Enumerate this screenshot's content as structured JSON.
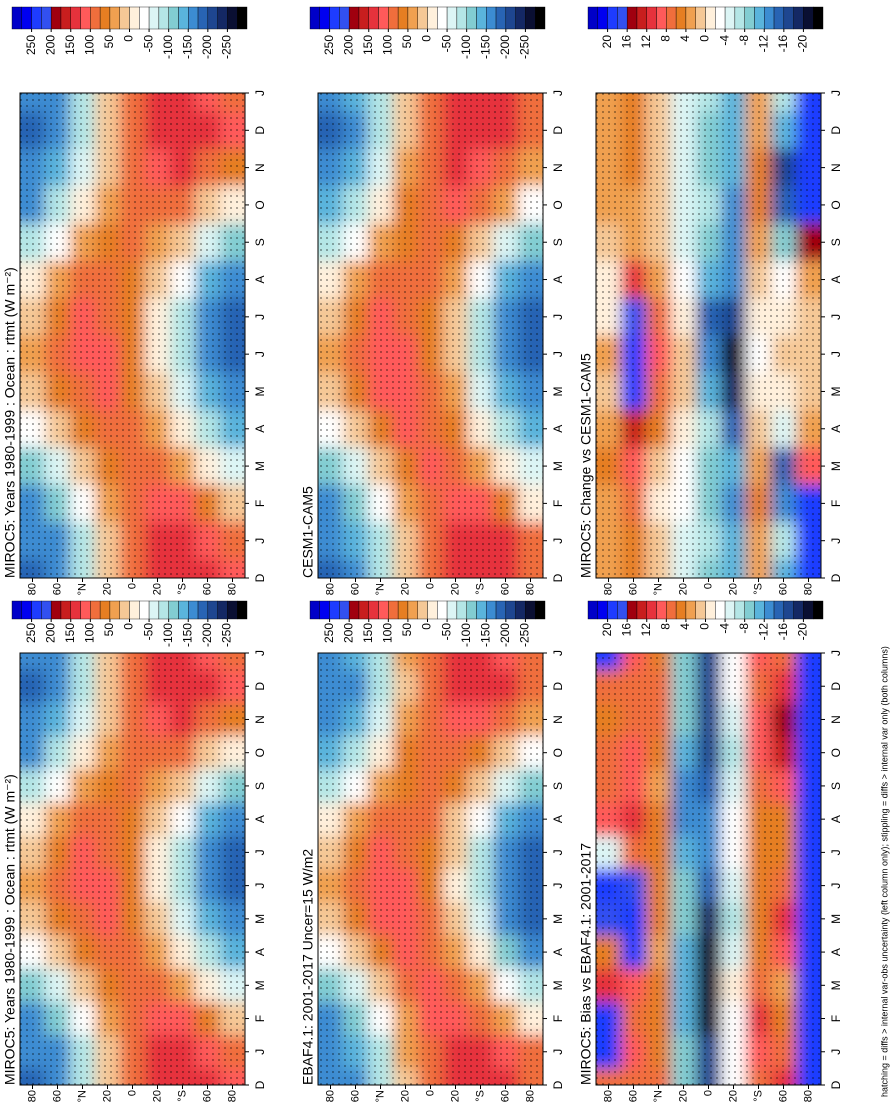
{
  "chart_data": [
    {
      "type": "heatmap",
      "title": "MIROC5: Years 1980-1999 : Ocean : rtmt (W m⁻²)",
      "x": [
        "D",
        "J",
        "F",
        "M",
        "A",
        "M",
        "J",
        "J",
        "A",
        "S",
        "O",
        "N",
        "D",
        "J"
      ],
      "y": [
        80,
        60,
        40,
        20,
        0,
        -20,
        -40,
        -60,
        -80
      ],
      "ylim": [
        90,
        -90
      ],
      "yticks": [
        80,
        60,
        {
          "value": 40,
          "label": "°N"
        },
        20,
        0,
        {
          "value": -20,
          "label": "20"
        },
        {
          "value": -40,
          "label": "°S"
        },
        {
          "value": -60,
          "label": "60"
        },
        {
          "value": -80,
          "label": "80"
        }
      ],
      "z": [
        [
          -170,
          -160,
          -110,
          -30,
          20,
          40,
          20,
          -20,
          -90,
          -150,
          -170,
          -175
        ],
        [
          -150,
          -120,
          -60,
          10,
          60,
          80,
          70,
          30,
          -30,
          -90,
          -140,
          -155
        ],
        [
          -80,
          -40,
          10,
          60,
          100,
          120,
          110,
          80,
          30,
          -20,
          -70,
          -90
        ],
        [
          20,
          40,
          70,
          100,
          110,
          110,
          100,
          90,
          70,
          50,
          25,
          10
        ],
        [
          80,
          90,
          100,
          90,
          70,
          60,
          60,
          70,
          80,
          80,
          80,
          80
        ],
        [
          130,
          110,
          80,
          40,
          10,
          -5,
          0,
          20,
          50,
          90,
          120,
          135
        ],
        [
          140,
          110,
          50,
          -10,
          -60,
          -90,
          -80,
          -40,
          20,
          80,
          130,
          150
        ],
        [
          120,
          60,
          -20,
          -90,
          -140,
          -160,
          -160,
          -130,
          -60,
          20,
          90,
          140
        ],
        [
          100,
          20,
          -60,
          -130,
          -170,
          -180,
          -180,
          -160,
          -100,
          -10,
          70,
          120
        ]
      ],
      "colorbar_ticks": [
        250,
        200,
        150,
        100,
        50,
        0,
        -50,
        -100,
        -150,
        -200,
        -250
      ]
    },
    {
      "type": "heatmap",
      "title": "MIROC5: Years 1980-1999 : Ocean : rtmt (W m⁻²)",
      "x": [
        "D",
        "J",
        "F",
        "M",
        "A",
        "M",
        "J",
        "J",
        "A",
        "S",
        "O",
        "N",
        "D",
        "J"
      ],
      "y": [
        80,
        60,
        40,
        20,
        0,
        -20,
        -40,
        -60,
        -80
      ],
      "ylim": [
        90,
        -90
      ],
      "yticks": [
        80,
        60,
        {
          "value": 40,
          "label": "°N"
        },
        20,
        0,
        {
          "value": -20,
          "label": "20"
        },
        {
          "value": -40,
          "label": "°S"
        },
        {
          "value": -60,
          "label": "60"
        },
        {
          "value": -80,
          "label": "80"
        }
      ],
      "z": [
        [
          -170,
          -160,
          -110,
          -30,
          20,
          40,
          20,
          -20,
          -90,
          -150,
          -170,
          -175
        ],
        [
          -150,
          -120,
          -60,
          10,
          60,
          80,
          70,
          30,
          -30,
          -90,
          -140,
          -155
        ],
        [
          -80,
          -40,
          10,
          60,
          100,
          120,
          110,
          80,
          30,
          -20,
          -70,
          -90
        ],
        [
          20,
          40,
          70,
          100,
          110,
          110,
          100,
          90,
          70,
          50,
          25,
          10
        ],
        [
          80,
          90,
          100,
          90,
          70,
          60,
          60,
          70,
          80,
          80,
          80,
          80
        ],
        [
          130,
          110,
          80,
          40,
          10,
          -5,
          0,
          20,
          50,
          90,
          120,
          135
        ],
        [
          140,
          110,
          50,
          -10,
          -60,
          -90,
          -80,
          -40,
          20,
          80,
          130,
          150
        ],
        [
          120,
          60,
          -20,
          -90,
          -140,
          -160,
          -160,
          -130,
          -60,
          20,
          90,
          140
        ],
        [
          100,
          20,
          -60,
          -130,
          -170,
          -180,
          -180,
          -160,
          -100,
          -10,
          70,
          120
        ]
      ],
      "colorbar_ticks": [
        250,
        200,
        150,
        100,
        50,
        0,
        -50,
        -100,
        -150,
        -200,
        -250
      ]
    },
    {
      "type": "heatmap",
      "title": "EBAF4.1: 2001-2017 Uncer=15 W/m2",
      "x": [
        "D",
        "J",
        "F",
        "M",
        "A",
        "M",
        "J",
        "J",
        "A",
        "S",
        "O",
        "N",
        "D",
        "J"
      ],
      "y": [
        80,
        60,
        40,
        20,
        0,
        -20,
        -40,
        -60,
        -80
      ],
      "ylim": [
        90,
        -90
      ],
      "yticks": [
        80,
        60,
        {
          "value": 40,
          "label": "°N"
        },
        20,
        0,
        {
          "value": -20,
          "label": "20"
        },
        {
          "value": -40,
          "label": "°S"
        },
        {
          "value": -60,
          "label": "60"
        },
        {
          "value": -80,
          "label": "80"
        }
      ],
      "z": [
        [
          -165,
          -150,
          -100,
          -25,
          25,
          45,
          25,
          -15,
          -85,
          -145,
          -165,
          -170
        ],
        [
          -140,
          -110,
          -55,
          15,
          65,
          85,
          75,
          35,
          -25,
          -85,
          -135,
          -150
        ],
        [
          -75,
          -35,
          15,
          65,
          105,
          125,
          115,
          85,
          35,
          -15,
          -65,
          -85
        ],
        [
          30,
          50,
          80,
          105,
          110,
          105,
          95,
          90,
          75,
          55,
          35,
          20
        ],
        [
          95,
          105,
          110,
          100,
          85,
          75,
          75,
          85,
          95,
          95,
          95,
          95
        ],
        [
          135,
          115,
          85,
          45,
          15,
          0,
          5,
          25,
          55,
          95,
          125,
          140
        ],
        [
          130,
          100,
          40,
          -20,
          -70,
          -95,
          -85,
          -45,
          15,
          75,
          120,
          140
        ],
        [
          110,
          50,
          -30,
          -100,
          -150,
          -165,
          -165,
          -135,
          -70,
          10,
          80,
          130
        ],
        [
          80,
          0,
          -80,
          -150,
          -180,
          -185,
          -185,
          -170,
          -120,
          -30,
          50,
          100
        ]
      ],
      "colorbar_ticks": [
        250,
        200,
        150,
        100,
        50,
        0,
        -50,
        -100,
        -150,
        -200,
        -250
      ]
    },
    {
      "type": "heatmap",
      "title": "CESM1-CAM5",
      "x": [
        "D",
        "J",
        "F",
        "M",
        "A",
        "M",
        "J",
        "J",
        "A",
        "S",
        "O",
        "N",
        "D",
        "J"
      ],
      "y": [
        80,
        60,
        40,
        20,
        0,
        -20,
        -40,
        -60,
        -80
      ],
      "ylim": [
        90,
        -90
      ],
      "yticks": [
        80,
        60,
        {
          "value": 40,
          "label": "°N"
        },
        20,
        0,
        {
          "value": -20,
          "label": "20"
        },
        {
          "value": -40,
          "label": "°S"
        },
        {
          "value": -60,
          "label": "60"
        },
        {
          "value": -80,
          "label": "80"
        }
      ],
      "z": [
        [
          -172,
          -160,
          -108,
          -28,
          22,
          42,
          22,
          -18,
          -88,
          -148,
          -168,
          -176
        ],
        [
          -148,
          -118,
          -58,
          12,
          62,
          84,
          74,
          32,
          -28,
          -88,
          -138,
          -152
        ],
        [
          -78,
          -38,
          12,
          62,
          102,
          122,
          112,
          82,
          32,
          -18,
          -68,
          -88
        ],
        [
          22,
          42,
          72,
          102,
          108,
          106,
          98,
          90,
          72,
          52,
          28,
          14
        ],
        [
          86,
          96,
          106,
          96,
          80,
          72,
          74,
          80,
          88,
          86,
          88,
          88
        ],
        [
          140,
          122,
          90,
          54,
          28,
          15,
          16,
          32,
          62,
          102,
          130,
          145
        ],
        [
          136,
          104,
          46,
          -12,
          -60,
          -88,
          -80,
          -42,
          16,
          76,
          124,
          146
        ],
        [
          126,
          72,
          -6,
          -86,
          -140,
          -162,
          -160,
          -128,
          -52,
          34,
          100,
          150
        ],
        [
          80,
          0,
          -70,
          -134,
          -172,
          -182,
          -182,
          -164,
          -116,
          -30,
          50,
          100
        ]
      ],
      "colorbar_ticks": [
        250,
        200,
        150,
        100,
        50,
        0,
        -50,
        -100,
        -150,
        -200,
        -250
      ]
    },
    {
      "type": "heatmap",
      "title": "MIROC5: Bias vs EBAF4.1: 2001-2017",
      "x": [
        "D",
        "J",
        "F",
        "M",
        "A",
        "M",
        "J",
        "J",
        "A",
        "S",
        "O",
        "N",
        "D",
        "J"
      ],
      "y": [
        80,
        60,
        40,
        20,
        0,
        -20,
        -40,
        -60,
        -80
      ],
      "ylim": [
        90,
        -90
      ],
      "yticks": [
        80,
        60,
        {
          "value": 40,
          "label": "°N"
        },
        20,
        0,
        {
          "value": -20,
          "label": "20"
        },
        {
          "value": -40,
          "label": "°S"
        },
        {
          "value": -60,
          "label": "60"
        },
        {
          "value": -80,
          "label": "80"
        }
      ],
      "z": [
        [
          20,
          20,
          12,
          6,
          18,
          20,
          -4,
          10,
          8,
          8,
          6,
          8
        ],
        [
          10,
          8,
          10,
          20,
          20,
          18,
          8,
          12,
          10,
          10,
          8,
          8
        ],
        [
          6,
          6,
          6,
          4,
          6,
          6,
          6,
          6,
          4,
          6,
          8,
          8
        ],
        [
          -8,
          -10,
          -10,
          -10,
          -8,
          -8,
          -10,
          -12,
          -12,
          -10,
          -8,
          -8
        ],
        [
          -16,
          -20,
          -20,
          -20,
          -18,
          -14,
          -12,
          -12,
          -14,
          -16,
          -16,
          -16
        ],
        [
          -2,
          -2,
          0,
          -4,
          -6,
          -4,
          -2,
          -2,
          -4,
          -6,
          -4,
          -2
        ],
        [
          10,
          12,
          8,
          6,
          6,
          6,
          6,
          6,
          8,
          10,
          10,
          8
        ],
        [
          8,
          6,
          4,
          10,
          12,
          8,
          6,
          6,
          10,
          14,
          16,
          12
        ],
        [
          20,
          20,
          20,
          20,
          20,
          20,
          20,
          20,
          20,
          20,
          20,
          20
        ]
      ],
      "colorbar_ticks": [
        20,
        16,
        12,
        8,
        4,
        0,
        -4,
        -8,
        -12,
        -16,
        -20
      ]
    },
    {
      "type": "heatmap",
      "title": "MIROC5: Change vs CESM1-CAM5",
      "x": [
        "D",
        "J",
        "F",
        "M",
        "A",
        "M",
        "J",
        "J",
        "A",
        "S",
        "O",
        "N",
        "D",
        "J"
      ],
      "y": [
        80,
        60,
        40,
        20,
        0,
        -20,
        -40,
        -60,
        -80
      ],
      "ylim": [
        90,
        -90
      ],
      "yticks": [
        80,
        60,
        {
          "value": 40,
          "label": "°N"
        },
        20,
        0,
        {
          "value": -20,
          "label": "20"
        },
        {
          "value": -40,
          "label": "°S"
        },
        {
          "value": -60,
          "label": "60"
        },
        {
          "value": -80,
          "label": "80"
        }
      ],
      "z": [
        [
          4,
          4,
          6,
          4,
          2,
          4,
          0,
          0,
          2,
          4,
          4,
          4
        ],
        [
          6,
          8,
          10,
          14,
          20,
          20,
          18,
          12,
          4,
          4,
          6,
          6
        ],
        [
          2,
          0,
          2,
          6,
          8,
          10,
          8,
          4,
          2,
          2,
          2,
          2
        ],
        [
          -4,
          -2,
          -2,
          0,
          2,
          2,
          0,
          -2,
          -4,
          -4,
          -4,
          -4
        ],
        [
          -6,
          -8,
          -8,
          -6,
          -10,
          -12,
          -14,
          -10,
          -8,
          -6,
          -8,
          -8
        ],
        [
          -10,
          -12,
          -10,
          -14,
          -18,
          -20,
          -16,
          -12,
          -12,
          -12,
          -10,
          -10
        ],
        [
          4,
          6,
          4,
          2,
          0,
          -2,
          0,
          2,
          4,
          6,
          6,
          4
        ],
        [
          -6,
          -12,
          -14,
          -4,
          0,
          2,
          0,
          -2,
          -8,
          -14,
          -16,
          -10
        ],
        [
          20,
          20,
          10,
          4,
          2,
          2,
          2,
          4,
          16,
          20,
          20,
          20
        ]
      ],
      "colorbar_ticks": [
        20,
        16,
        12,
        8,
        4,
        0,
        -4,
        -8,
        -12,
        -16,
        -20
      ]
    }
  ],
  "palette": [
    "#0000c8",
    "#0000f0",
    "#1e3cff",
    "#3250f0",
    "#a0000f",
    "#c81e1e",
    "#e6323c",
    "#ff5a5a",
    "#f06e3c",
    "#e67e22",
    "#f0a050",
    "#f5c896",
    "#fff0dc",
    "#ffffff",
    "#dcf5f5",
    "#b4e6e6",
    "#82cdd2",
    "#5ab4dc",
    "#3c8cd2",
    "#2864b4",
    "#1e4690",
    "#142864",
    "#0a0f32",
    "#000000"
  ],
  "footer": "hatching = diffs > internal var-obs uncertainty (left column only); stippling = diffs > internal var only (both columns)"
}
